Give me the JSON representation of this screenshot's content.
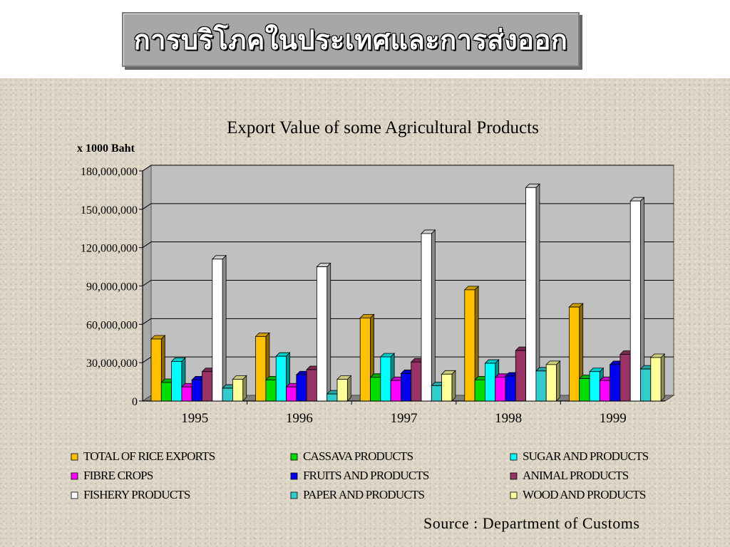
{
  "slide": {
    "title": "การบริโภคในประเทศและการส่งออก",
    "source": "Source : Department of Customs"
  },
  "chart_data": {
    "type": "bar",
    "title": "Export Value of some Agricultural Products",
    "ylabel": "x 1000 Baht",
    "xlabel": "",
    "ylim": [
      0,
      180000000
    ],
    "yticks": [
      "180,000,000",
      "150,000,000",
      "120,000,000",
      "90,000,000",
      "60,000,000",
      "30,000,000",
      "0"
    ],
    "grid": true,
    "legend_position": "bottom",
    "categories": [
      "1995",
      "1996",
      "1997",
      "1998",
      "1999"
    ],
    "series": [
      {
        "name": "TOTAL OF RICE EXPORTS",
        "color": "#ffc000",
        "values": [
          48500000,
          50500000,
          65000000,
          87000000,
          73500000
        ]
      },
      {
        "name": "CASSAVA PRODUCTS",
        "color": "#00dd00",
        "values": [
          14500000,
          16500000,
          18500000,
          16500000,
          17500000
        ]
      },
      {
        "name": "SUGAR AND PRODUCTS",
        "color": "#00ffff",
        "values": [
          31000000,
          35000000,
          34500000,
          29500000,
          23000000
        ]
      },
      {
        "name": "FIBRE CROPS",
        "color": "#ff00ff",
        "values": [
          11000000,
          11000000,
          16000000,
          18500000,
          16000000
        ]
      },
      {
        "name": "FRUITS AND PRODUCTS",
        "color": "#0000ee",
        "values": [
          16500000,
          20500000,
          21500000,
          19500000,
          28500000
        ]
      },
      {
        "name": "ANIMAL PRODUCTS",
        "color": "#993366",
        "values": [
          23000000,
          24500000,
          30500000,
          39500000,
          36500000
        ]
      },
      {
        "name": "FISHERY PRODUCTS",
        "color": "#ffffff",
        "values": [
          111000000,
          105000000,
          131000000,
          167000000,
          156500000
        ]
      },
      {
        "name": "PAPER AND PRODUCTS",
        "color": "#33cccc",
        "values": [
          10000000,
          5500000,
          12000000,
          23500000,
          25000000
        ]
      },
      {
        "name": "WOOD AND PRODUCTS",
        "color": "#ffff99",
        "values": [
          17000000,
          17000000,
          21000000,
          28500000,
          34000000
        ]
      }
    ]
  }
}
